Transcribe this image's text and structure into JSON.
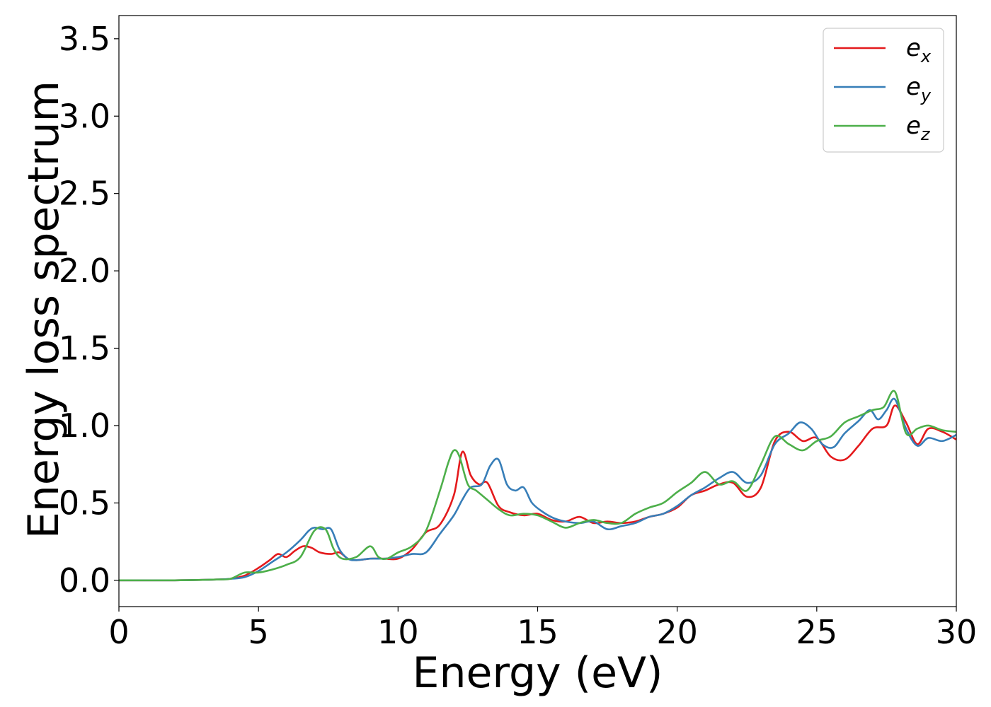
{
  "chart_data": {
    "type": "line",
    "title": "",
    "xlabel": "Energy (eV)",
    "ylabel": "Energy loss spectrum",
    "xlim": [
      0,
      30
    ],
    "ylim": [
      -0.17,
      3.65
    ],
    "xticks": [
      0,
      5,
      10,
      15,
      20,
      25,
      30
    ],
    "yticks": [
      0.0,
      0.5,
      1.0,
      1.5,
      2.0,
      2.5,
      3.0,
      3.5
    ],
    "xtick_labels": [
      "0",
      "5",
      "10",
      "15",
      "20",
      "25",
      "30"
    ],
    "ytick_labels": [
      "0.0",
      "0.5",
      "1.0",
      "1.5",
      "2.0",
      "2.5",
      "3.0",
      "3.5"
    ],
    "grid": false,
    "legend_position": "top-right",
    "series": [
      {
        "name": "e",
        "subscript": "x",
        "color": "#e41a1c",
        "x": [
          0,
          2,
          3.5,
          4,
          4.5,
          5,
          5.4,
          5.7,
          6.0,
          6.3,
          6.6,
          6.9,
          7.2,
          7.6,
          7.9,
          8.2,
          8.5,
          9.0,
          9.5,
          10.0,
          10.5,
          11.0,
          11.5,
          12.0,
          12.3,
          12.6,
          12.9,
          13.2,
          13.6,
          14.0,
          14.5,
          15.0,
          15.5,
          16.0,
          16.5,
          17.0,
          17.5,
          18.0,
          18.5,
          19.0,
          19.5,
          20.0,
          20.5,
          21.0,
          21.5,
          22.0,
          22.5,
          23.0,
          23.5,
          24.0,
          24.5,
          25.0,
          25.5,
          26.0,
          26.5,
          27.0,
          27.5,
          27.8,
          28.2,
          28.6,
          29.0,
          29.5,
          30.0
        ],
        "y": [
          0.0,
          0.0,
          0.005,
          0.01,
          0.03,
          0.08,
          0.13,
          0.17,
          0.15,
          0.19,
          0.22,
          0.21,
          0.18,
          0.17,
          0.18,
          0.14,
          0.13,
          0.14,
          0.14,
          0.14,
          0.2,
          0.31,
          0.36,
          0.55,
          0.83,
          0.68,
          0.62,
          0.63,
          0.48,
          0.44,
          0.42,
          0.43,
          0.39,
          0.38,
          0.41,
          0.37,
          0.38,
          0.37,
          0.38,
          0.41,
          0.43,
          0.47,
          0.55,
          0.58,
          0.62,
          0.63,
          0.54,
          0.6,
          0.9,
          0.96,
          0.9,
          0.92,
          0.8,
          0.78,
          0.87,
          0.98,
          1.0,
          1.13,
          1.02,
          0.88,
          0.98,
          0.96,
          0.91
        ]
      },
      {
        "name": "e",
        "subscript": "y",
        "color": "#377eb8",
        "x": [
          0,
          2,
          3.5,
          4,
          4.5,
          5,
          5.5,
          6.0,
          6.5,
          6.8,
          7.0,
          7.3,
          7.6,
          7.9,
          8.2,
          8.5,
          9.0,
          9.5,
          10.0,
          10.5,
          11.0,
          11.5,
          12.0,
          12.3,
          12.6,
          13.0,
          13.3,
          13.6,
          13.9,
          14.2,
          14.5,
          14.8,
          15.2,
          15.6,
          16.0,
          16.5,
          17.0,
          17.5,
          18.0,
          18.5,
          19.0,
          19.5,
          20.0,
          20.5,
          21.0,
          21.5,
          22.0,
          22.5,
          23.0,
          23.5,
          24.0,
          24.4,
          24.8,
          25.2,
          25.6,
          26.0,
          26.5,
          26.9,
          27.2,
          27.5,
          27.8,
          28.2,
          28.6,
          29.0,
          29.5,
          30.0
        ],
        "y": [
          0.0,
          0.0,
          0.005,
          0.01,
          0.02,
          0.06,
          0.12,
          0.18,
          0.26,
          0.32,
          0.34,
          0.33,
          0.33,
          0.2,
          0.14,
          0.13,
          0.14,
          0.14,
          0.15,
          0.17,
          0.18,
          0.3,
          0.42,
          0.52,
          0.6,
          0.62,
          0.74,
          0.78,
          0.62,
          0.58,
          0.6,
          0.5,
          0.44,
          0.4,
          0.38,
          0.37,
          0.38,
          0.33,
          0.35,
          0.37,
          0.41,
          0.43,
          0.48,
          0.55,
          0.6,
          0.66,
          0.7,
          0.63,
          0.68,
          0.88,
          0.95,
          1.02,
          0.98,
          0.88,
          0.86,
          0.95,
          1.03,
          1.1,
          1.04,
          1.1,
          1.17,
          0.98,
          0.87,
          0.92,
          0.9,
          0.94
        ]
      },
      {
        "name": "e",
        "subscript": "z",
        "color": "#4daf4a",
        "x": [
          0,
          2,
          3.5,
          4,
          4.5,
          5,
          5.5,
          6.0,
          6.5,
          7.0,
          7.4,
          7.7,
          8.0,
          8.5,
          9.0,
          9.3,
          9.6,
          10.0,
          10.5,
          11.0,
          11.5,
          11.8,
          12.0,
          12.2,
          12.5,
          12.8,
          13.2,
          13.6,
          14.0,
          14.5,
          15.0,
          15.5,
          16.0,
          16.5,
          17.0,
          17.5,
          18.0,
          18.5,
          19.0,
          19.5,
          20.0,
          20.5,
          21.0,
          21.5,
          22.0,
          22.5,
          23.0,
          23.5,
          24.0,
          24.5,
          25.0,
          25.5,
          26.0,
          26.5,
          27.0,
          27.4,
          27.8,
          28.2,
          28.6,
          29.0,
          29.5,
          30.0
        ],
        "y": [
          0.0,
          0.0,
          0.005,
          0.01,
          0.05,
          0.05,
          0.07,
          0.1,
          0.15,
          0.32,
          0.33,
          0.2,
          0.14,
          0.15,
          0.22,
          0.15,
          0.14,
          0.18,
          0.22,
          0.32,
          0.58,
          0.76,
          0.84,
          0.8,
          0.62,
          0.58,
          0.52,
          0.46,
          0.42,
          0.43,
          0.42,
          0.38,
          0.34,
          0.37,
          0.39,
          0.37,
          0.37,
          0.43,
          0.47,
          0.5,
          0.57,
          0.63,
          0.7,
          0.62,
          0.64,
          0.58,
          0.75,
          0.93,
          0.88,
          0.84,
          0.9,
          0.93,
          1.02,
          1.06,
          1.1,
          1.12,
          1.22,
          0.95,
          0.98,
          1.0,
          0.97,
          0.96
        ]
      }
    ]
  }
}
